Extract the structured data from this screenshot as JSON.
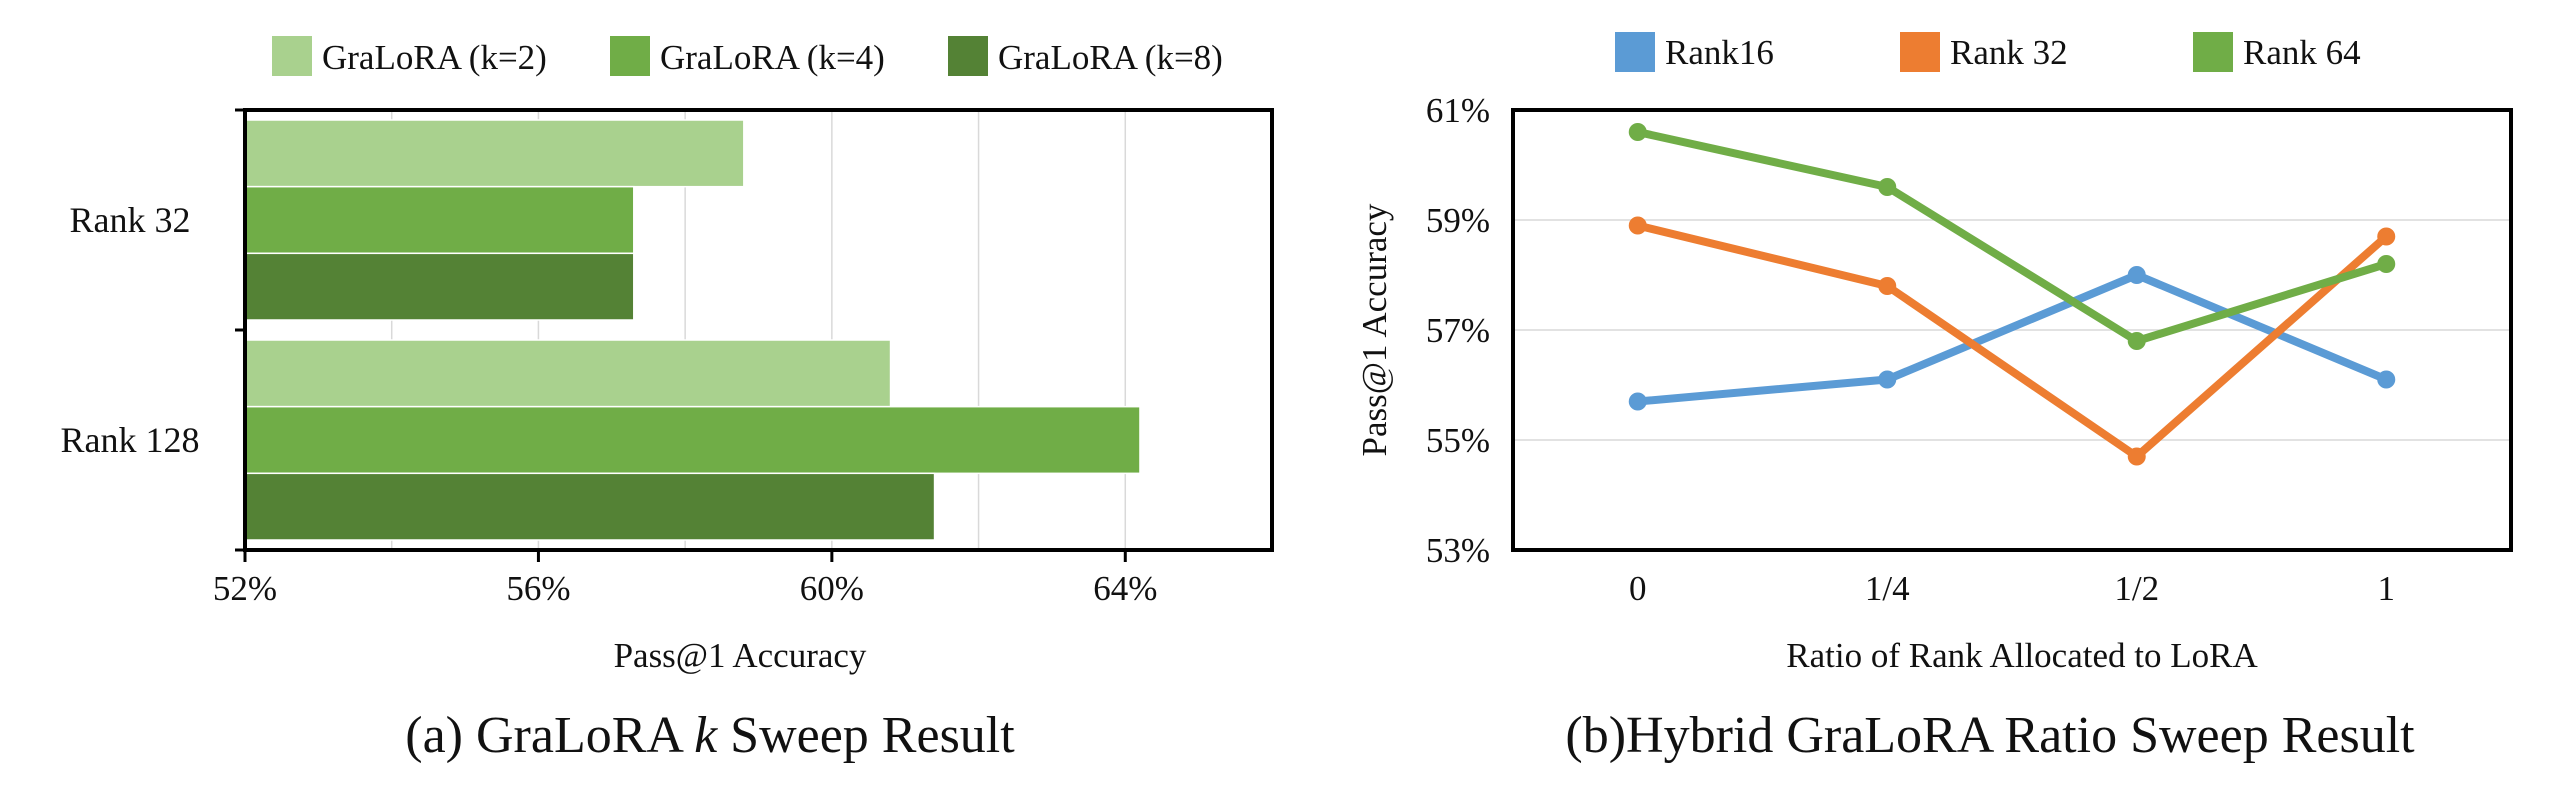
{
  "chart_data": [
    {
      "type": "bar",
      "orientation": "horizontal",
      "caption": "(a) GraLoRA k Sweep Result",
      "caption_parts": {
        "prefix": "(a) GraLoRA ",
        "italic": "k",
        "suffix": " Sweep Result"
      },
      "categories": [
        "Rank 32",
        "Rank 128"
      ],
      "series": [
        {
          "name": "GraLoRA (k=2)",
          "color": "#a9d18e",
          "values": [
            58.8,
            60.8
          ]
        },
        {
          "name": "GraLoRA (k=4)",
          "color": "#70ad47",
          "values": [
            57.3,
            64.2
          ]
        },
        {
          "name": "GraLoRA (k=8)",
          "color": "#548235",
          "values": [
            57.3,
            61.4
          ]
        }
      ],
      "xlabel": "Pass@1 Accuracy",
      "ylabel": "",
      "xlim": [
        52,
        66
      ],
      "x_ticks": [
        52,
        56,
        60,
        64
      ],
      "x_tick_labels": [
        "52%",
        "56%",
        "60%",
        "64%"
      ],
      "grid": true,
      "legend": "top"
    },
    {
      "type": "line",
      "caption": "(b)Hybrid GraLoRA Ratio Sweep Result",
      "x": [
        "0",
        "1/4",
        "1/2",
        "1"
      ],
      "series": [
        {
          "name": "Rank16",
          "color": "#5b9bd5",
          "values": [
            55.7,
            56.1,
            58.0,
            56.1
          ]
        },
        {
          "name": "Rank 32",
          "color": "#ed7d31",
          "values": [
            58.9,
            57.8,
            54.7,
            58.7
          ]
        },
        {
          "name": "Rank 64",
          "color": "#70ad47",
          "values": [
            60.6,
            59.6,
            56.8,
            58.2
          ]
        }
      ],
      "xlabel": "Ratio of Rank Allocated to LoRA",
      "ylabel": "Pass@1 Accuracy",
      "ylim": [
        53,
        61
      ],
      "y_ticks": [
        53,
        55,
        57,
        59,
        61
      ],
      "y_tick_labels": [
        "53%",
        "55%",
        "57%",
        "59%",
        "61%"
      ],
      "grid": true,
      "legend": "top"
    }
  ]
}
